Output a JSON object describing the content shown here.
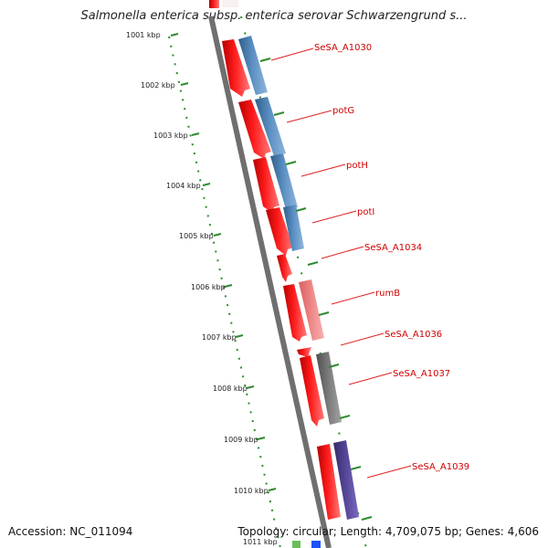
{
  "title": "Salmonella enterica subsp. enterica serovar Schwarzengrund s...",
  "footer": {
    "accession": "Accession: NC_011094",
    "summary": "Topology: circular; Length: 4,709,075 bp; Genes: 4,606"
  },
  "scale_labels": [
    "1001 kbp",
    "1002 kbp",
    "1003 kbp",
    "1004 kbp",
    "1005 kbp",
    "1006 kbp",
    "1007 kbp",
    "1008 kbp",
    "1009 kbp",
    "1010 kbp",
    "1011 kbp"
  ],
  "gene_labels": [
    "SeSA_A1030",
    "potG",
    "potH",
    "potI",
    "SeSA_A1034",
    "rumB",
    "SeSA_A1036",
    "SeSA_A1037",
    "SeSA_A1039"
  ],
  "colors": {
    "backbone": "#6f6f6f",
    "scale": "#2e8b2e",
    "cds": "#ff1a1a",
    "label": "#d10000",
    "blue_feature": "#4f87bb",
    "pink_feature": "#ee7f7f",
    "gray_feature": "#707070",
    "purple_feature": "#55468a"
  }
}
